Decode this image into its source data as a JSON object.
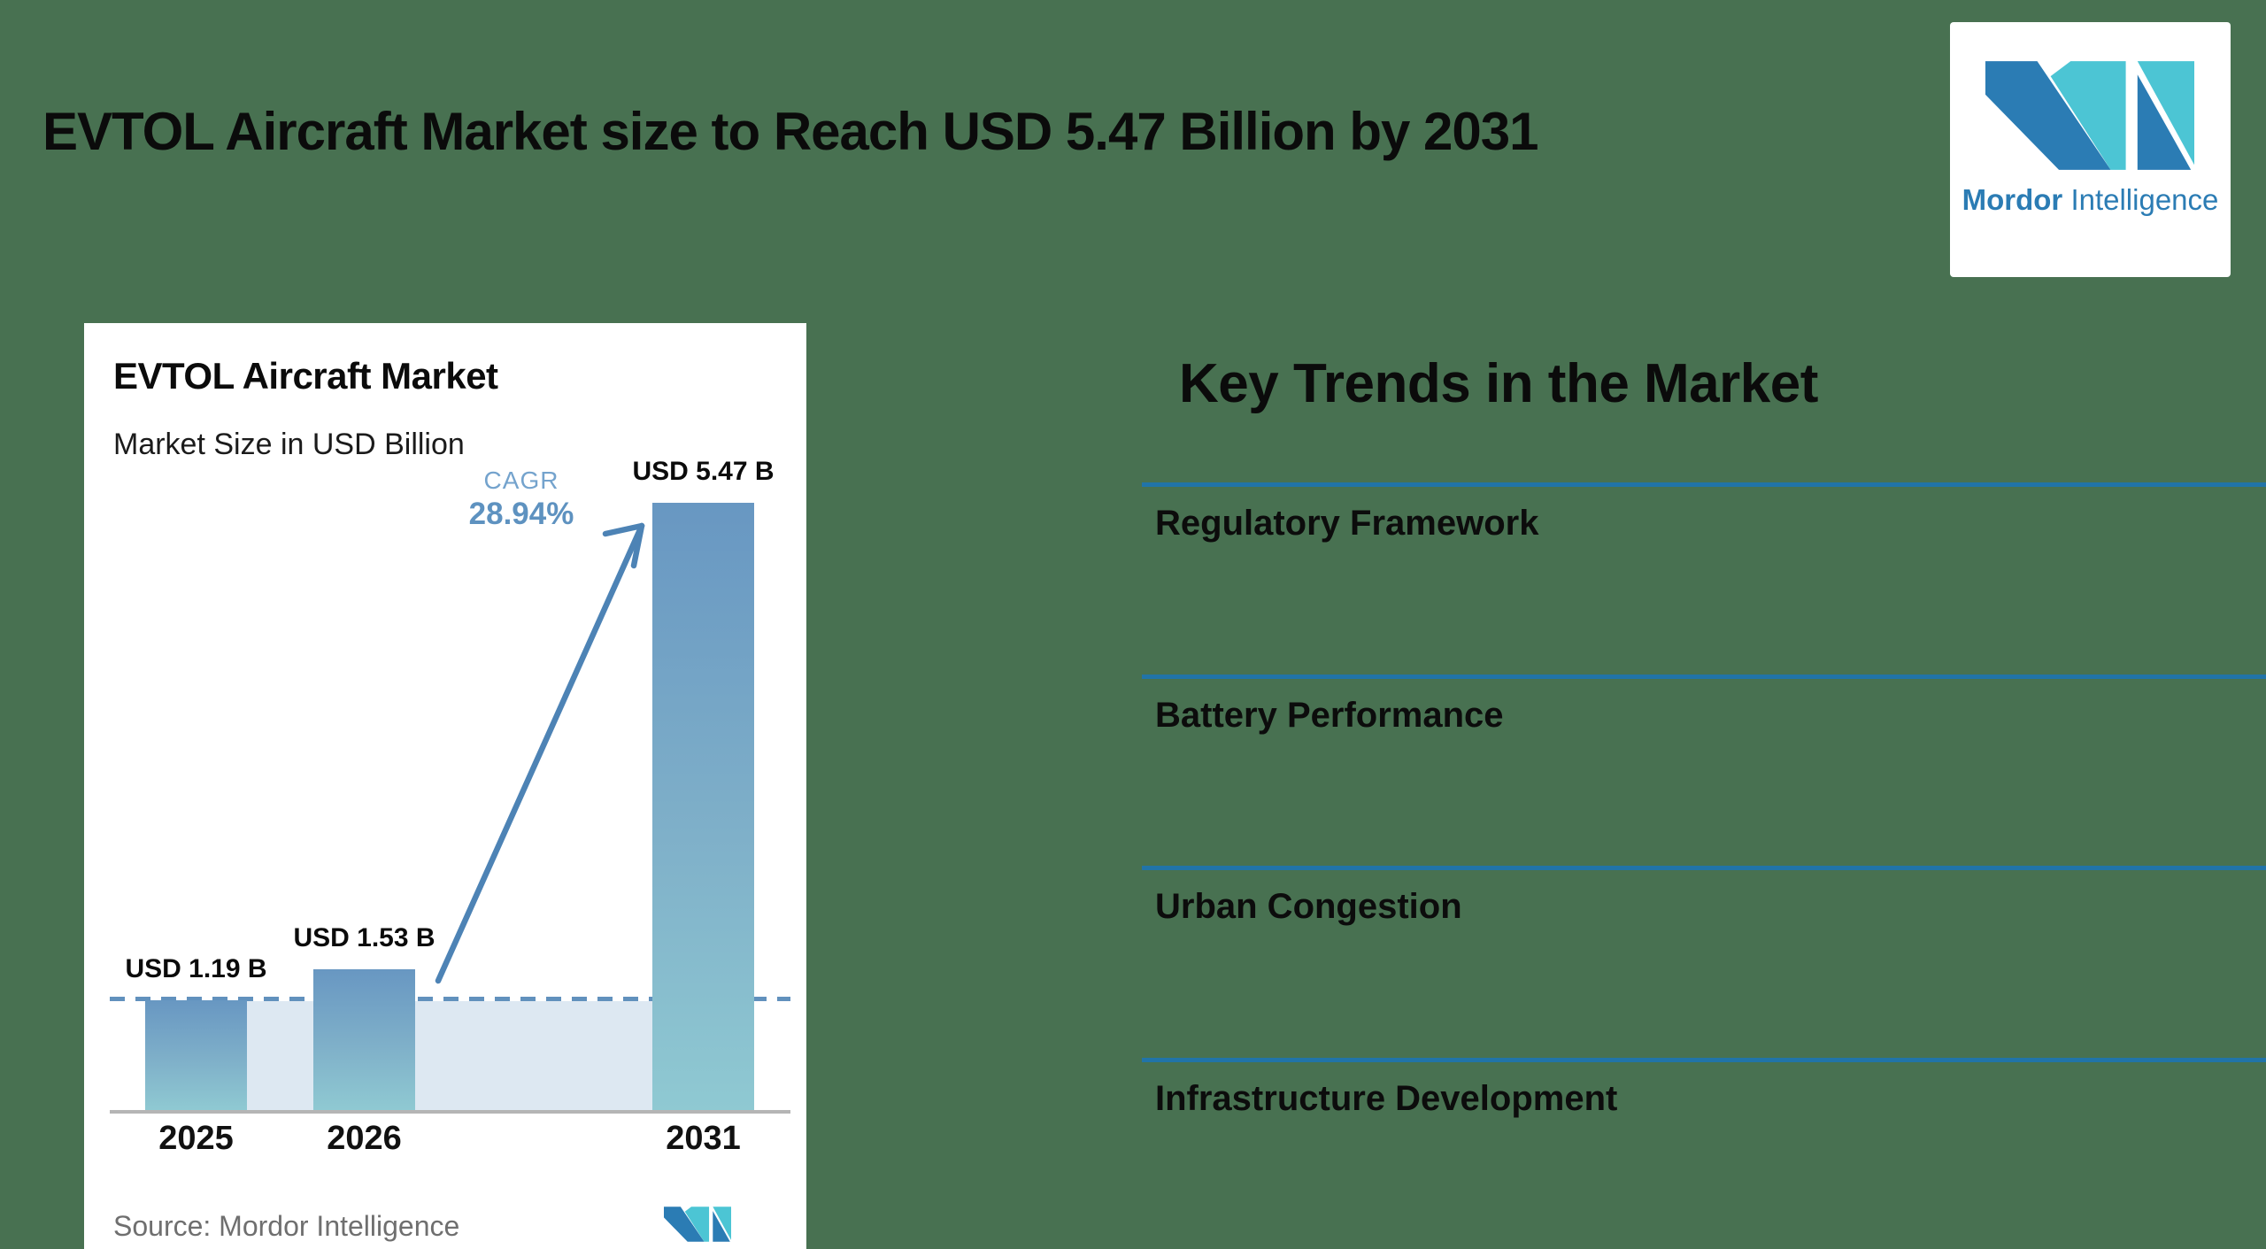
{
  "page": {
    "title": "EVTOL Aircraft Market size to Reach USD 5.47 Billion by 2031",
    "background_color": "#487151"
  },
  "brand": {
    "name_bold": "Mordor",
    "name_light": "Intelligence",
    "logo_dark_blue": "#2b7cb4",
    "logo_teal": "#4cc5d4"
  },
  "chart_card": {
    "title": "EVTOL Aircraft Market",
    "subtitle": "Market Size in USD Billion",
    "cagr_label": "CAGR",
    "cagr_value": "28.94%",
    "source_label": "Source:",
    "source_value": "Mordor Intelligence"
  },
  "chart_data": {
    "type": "bar",
    "title": "EVTOL Aircraft Market",
    "subtitle": "Market Size in USD Billion",
    "categories": [
      "2025",
      "2026",
      "2031"
    ],
    "values": [
      1.19,
      1.53,
      5.47
    ],
    "value_labels": [
      "USD 1.19 B",
      "USD 1.53 B",
      "USD 5.47 B"
    ],
    "unit": "USD Billion",
    "cagr_percent": 28.94,
    "cagr_annotation": "CAGR 28.94%",
    "dashed_reference_value": 1.19,
    "ylabel": "",
    "xlabel": "",
    "grid": "off",
    "legend": "none",
    "bar_gradient_top": "#6897c2",
    "bar_gradient_bottom": "#8fc9d2",
    "highlight_band_color": "#dde8f2",
    "dashed_line_color": "#6191bd",
    "arrow_color": "#4d83b5",
    "axis_color": "#b5b5b5",
    "source": "Mordor Intelligence"
  },
  "key_trends": {
    "title": "Key Trends in the Market",
    "items": [
      "Regulatory Framework",
      "Battery Performance",
      "Urban Congestion",
      "Infrastructure Development"
    ],
    "divider_color": "#2174a8"
  }
}
